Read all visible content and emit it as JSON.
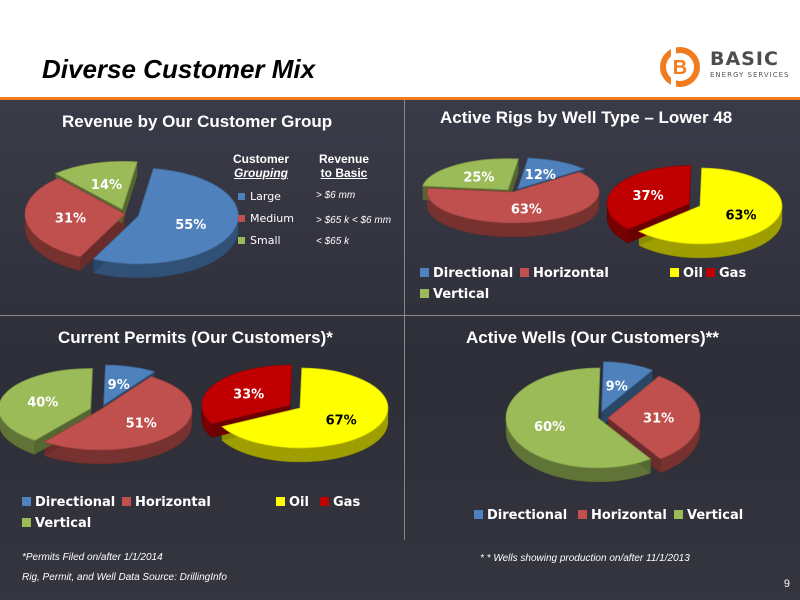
{
  "header": {
    "title": "Diverse Customer Mix",
    "logo": {
      "icon": "basic-b-logo-icon",
      "name": "BASIC",
      "tagline": "ENERGY SERVICES",
      "accent": "#f07c1f"
    }
  },
  "customer_legend": {
    "col1_line1": "Customer",
    "col1_line2": "Grouping",
    "col2_line1": "Revenue",
    "col2_line2": "to Basic",
    "items": [
      {
        "label": "Large",
        "range": "> $6 mm",
        "color": "#4f81bd"
      },
      {
        "label": "Medium",
        "range": "> $65 k < $6 mm",
        "color": "#c0504d"
      },
      {
        "label": "Small",
        "range": "< $65 k",
        "color": "#9bbb59"
      }
    ]
  },
  "chart_data": [
    {
      "type": "pie",
      "title": "Revenue by Our Customer Group",
      "categories": [
        "Large",
        "Medium",
        "Small"
      ],
      "values": [
        55,
        31,
        14
      ],
      "labels": [
        "55%",
        "31%",
        "14%"
      ],
      "colors": [
        "#4f81bd",
        "#c0504d",
        "#9bbb59"
      ]
    },
    {
      "type": "pie",
      "title": "Active Rigs by Well Type – Lower 48",
      "categories": [
        "Directional",
        "Horizontal",
        "Vertical"
      ],
      "values": [
        12,
        63,
        25
      ],
      "labels": [
        "12%",
        "63%",
        "25%"
      ],
      "colors": [
        "#4f81bd",
        "#c0504d",
        "#9bbb59"
      ],
      "legend": [
        "Directional",
        "Horizontal",
        "Vertical"
      ]
    },
    {
      "type": "pie",
      "categories": [
        "Oil",
        "Gas"
      ],
      "values": [
        63,
        37
      ],
      "labels": [
        "63%",
        "37%"
      ],
      "colors": [
        "#ffff00",
        "#c00000"
      ],
      "legend": [
        "Oil",
        "Gas"
      ]
    },
    {
      "type": "pie",
      "title": "Current Permits (Our Customers)*",
      "categories": [
        "Directional",
        "Horizontal",
        "Vertical"
      ],
      "values": [
        9,
        51,
        40
      ],
      "labels": [
        "9%",
        "51%",
        "40%"
      ],
      "colors": [
        "#4f81bd",
        "#c0504d",
        "#9bbb59"
      ],
      "legend": [
        "Directional",
        "Horizontal",
        "Vertical"
      ]
    },
    {
      "type": "pie",
      "categories": [
        "Oil",
        "Gas"
      ],
      "values": [
        67,
        33
      ],
      "labels": [
        "67%",
        "33%"
      ],
      "colors": [
        "#ffff00",
        "#c00000"
      ],
      "legend": [
        "Oil",
        "Gas"
      ]
    },
    {
      "type": "pie",
      "title": "Active Wells (Our Customers)**",
      "categories": [
        "Directional",
        "Horizontal",
        "Vertical"
      ],
      "values": [
        9,
        31,
        60
      ],
      "labels": [
        "9%",
        "31%",
        "60%"
      ],
      "colors": [
        "#4f81bd",
        "#c0504d",
        "#9bbb59"
      ],
      "legend": [
        "Directional",
        "Horizontal",
        "Vertical"
      ]
    }
  ],
  "footnotes": {
    "permits": "*Permits Filed on/after 1/1/2014",
    "source": "Rig, Permit, and Well Data Source: DrillingInfo",
    "wells": "* * Wells showing production on/after 11/1/2013"
  },
  "page_number": "9"
}
